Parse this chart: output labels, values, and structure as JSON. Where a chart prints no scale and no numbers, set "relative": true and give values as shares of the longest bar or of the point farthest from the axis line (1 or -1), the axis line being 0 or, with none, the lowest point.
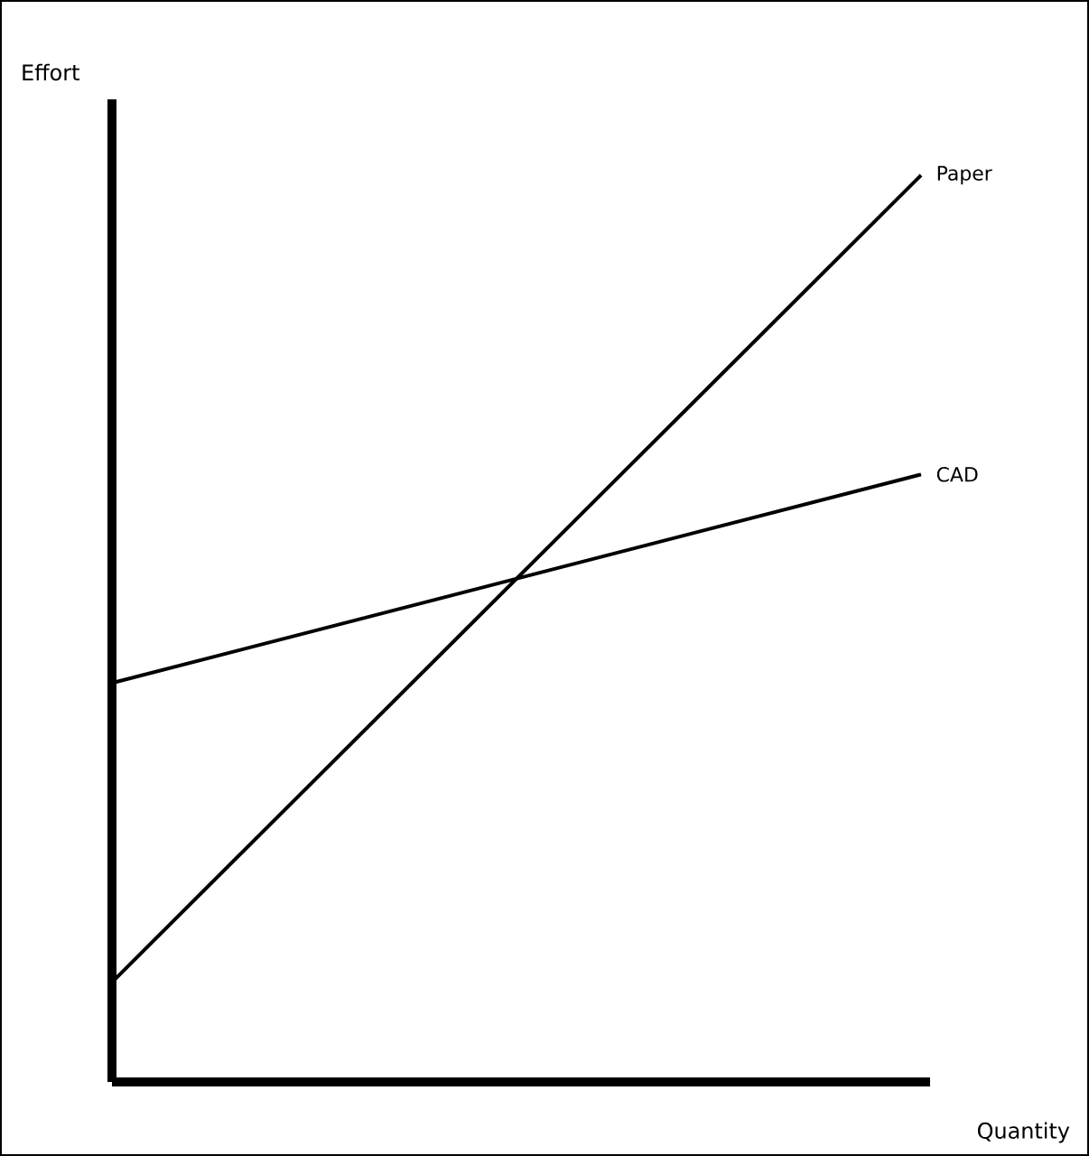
{
  "chart_data": {
    "type": "line",
    "relative": true,
    "xlabel": "Quantity",
    "ylabel": "Effort",
    "categories": [
      null,
      null
    ],
    "ref_lines": [
      {
        "axis": "y",
        "value": 0,
        "color": "#000000"
      }
    ],
    "series": [
      {
        "name": "Paper",
        "color": "#000000",
        "values": [
          0.11,
          1
        ]
      },
      {
        "name": "CAD",
        "color": "#000000",
        "values": [
          0.44,
          0.67
        ]
      }
    ]
  }
}
